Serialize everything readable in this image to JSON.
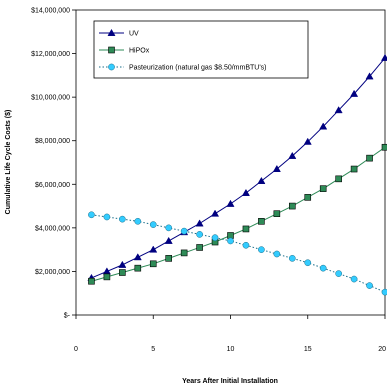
{
  "chart_data": {
    "type": "line",
    "xlabel": "Years After Initial Installation",
    "ylabel": "Cumulative Life Cycle Costs ($)",
    "xlim": [
      0,
      20
    ],
    "ylim": [
      0,
      14000000
    ],
    "x_ticks": [
      0,
      5,
      10,
      15,
      20
    ],
    "x_tick_labels": [
      "0",
      "5",
      "10",
      "15",
      "20"
    ],
    "y_ticks": [
      0,
      2000000,
      4000000,
      6000000,
      8000000,
      10000000,
      12000000,
      14000000
    ],
    "y_tick_labels": [
      "$-",
      "$2,000,000",
      "$4,000,000",
      "$6,000,000",
      "$8,000,000",
      "$10,000,000",
      "$12,000,000",
      "$14,000,000"
    ],
    "grid": false,
    "legend_position": "top-left",
    "x": [
      1,
      2,
      3,
      4,
      5,
      6,
      7,
      8,
      9,
      10,
      11,
      12,
      13,
      14,
      15,
      16,
      17,
      18,
      19,
      20
    ],
    "series": [
      {
        "name": "UV",
        "marker": "triangle",
        "color": "#000080",
        "line_style": "solid",
        "values": [
          1700000,
          2000000,
          2300000,
          2650000,
          3000000,
          3400000,
          3800000,
          4200000,
          4650000,
          5100000,
          5600000,
          6150000,
          6700000,
          7300000,
          7950000,
          8650000,
          9400000,
          10150000,
          10950000,
          11800000
        ]
      },
      {
        "name": "HiPOx",
        "marker": "square",
        "color": "#2e8b57",
        "line_style": "solid",
        "values": [
          1550000,
          1750000,
          1950000,
          2150000,
          2350000,
          2600000,
          2850000,
          3100000,
          3350000,
          3650000,
          3950000,
          4300000,
          4650000,
          5000000,
          5400000,
          5800000,
          6250000,
          6700000,
          7200000,
          7700000
        ]
      },
      {
        "name": "Pasteurization (natural gas $8.50/mmBTU's)",
        "marker": "circle",
        "color": "#33ccff",
        "line_style": "dotted",
        "values": [
          4600000,
          4500000,
          4400000,
          4300000,
          4150000,
          4000000,
          3850000,
          3700000,
          3550000,
          3400000,
          3200000,
          3000000,
          2800000,
          2600000,
          2400000,
          2150000,
          1900000,
          1650000,
          1350000,
          1050000
        ]
      }
    ]
  }
}
